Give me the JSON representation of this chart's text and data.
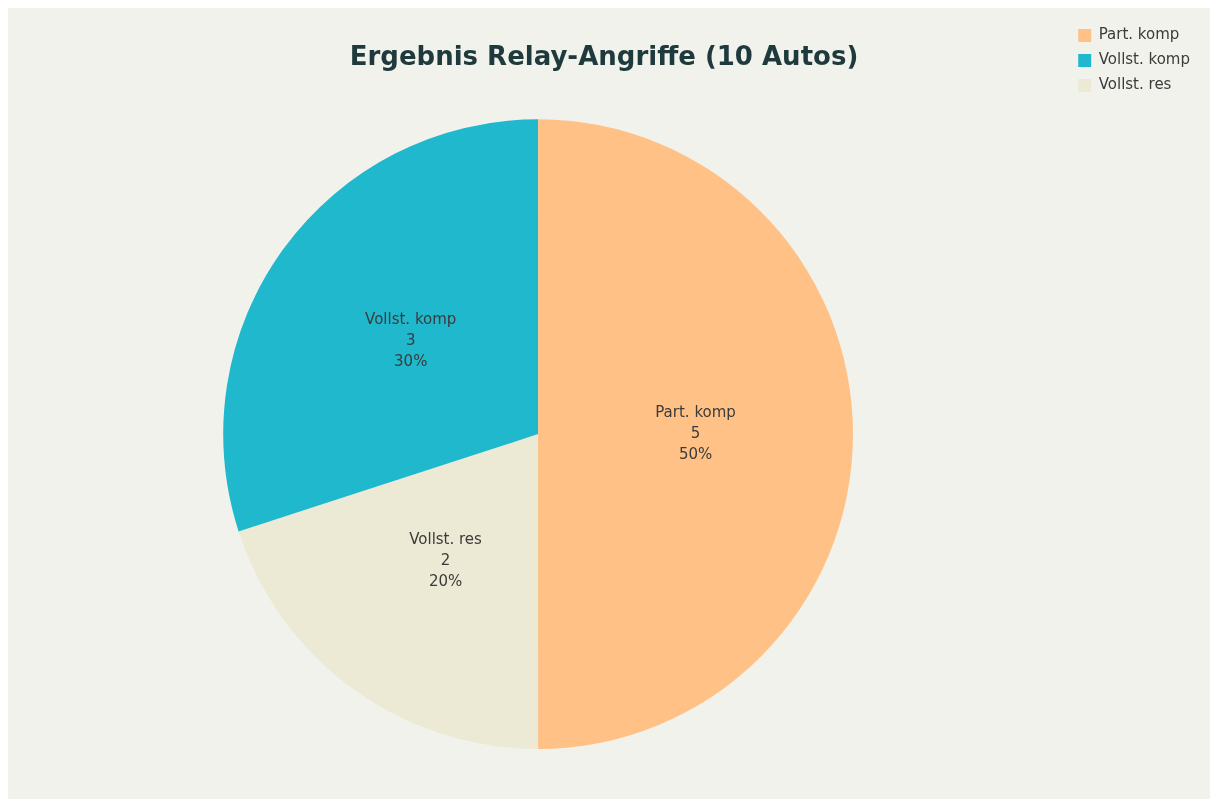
{
  "chart_data": {
    "type": "pie",
    "title": "Ergebnis Relay-Angriffe (10 Autos)",
    "categories": [
      "Part. komp",
      "Vollst. komp",
      "Vollst. res"
    ],
    "values": [
      50,
      30,
      20
    ],
    "colors": [
      "#ffc185",
      "#1fb8cd",
      "#ece9d5"
    ],
    "value_labels": [
      "5\n50%",
      "3\n30%",
      "2\n20%"
    ],
    "legend": "top right"
  }
}
